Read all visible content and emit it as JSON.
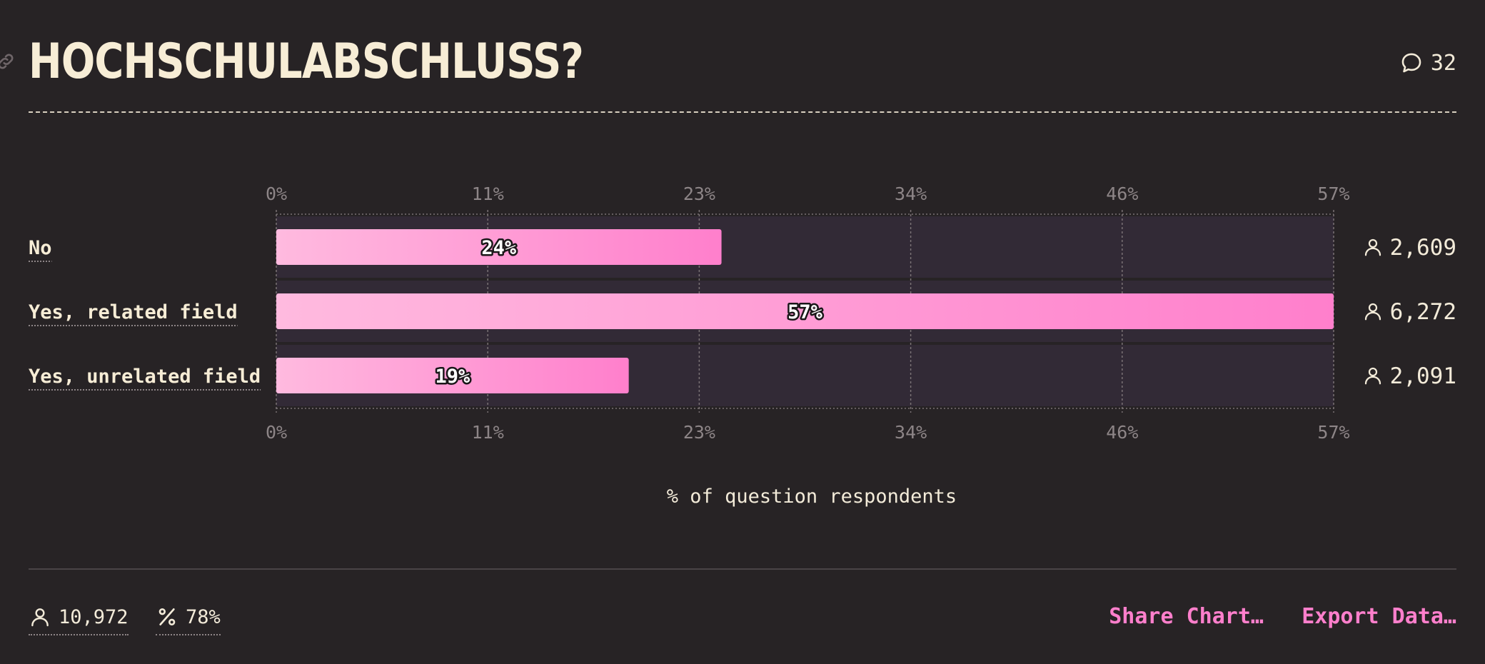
{
  "header": {
    "title": "HOCHSCHULABSCHLUSS?",
    "comment_count": "32"
  },
  "icons": {
    "link": "link-icon",
    "comment": "speech-bubble-icon",
    "user": "user-icon",
    "percent": "percent-icon"
  },
  "colors": {
    "bar_start": "#ffbadf",
    "bar_end": "#ff7fcc",
    "track": "#322a36",
    "link": "#ff7fcc",
    "background": "#272325"
  },
  "chart_data": {
    "type": "bar",
    "orientation": "horizontal",
    "categories": [
      "No",
      "Yes, related field",
      "Yes, unrelated field"
    ],
    "values": [
      24,
      57,
      19
    ],
    "value_labels": [
      "24%",
      "57%",
      "19%"
    ],
    "counts": [
      "2,609",
      "6,272",
      "2,091"
    ],
    "ticks": [
      0,
      11.4,
      22.8,
      34.2,
      45.6,
      57
    ],
    "tick_labels": [
      "0%",
      "11%",
      "23%",
      "34%",
      "46%",
      "57%"
    ],
    "xlim": [
      0,
      57
    ],
    "xlabel": "% of question respondents",
    "grid": true
  },
  "footer": {
    "respondents": "10,972",
    "percent_answered": "78%",
    "share_label": "Share Chart…",
    "export_label": "Export Data…"
  }
}
